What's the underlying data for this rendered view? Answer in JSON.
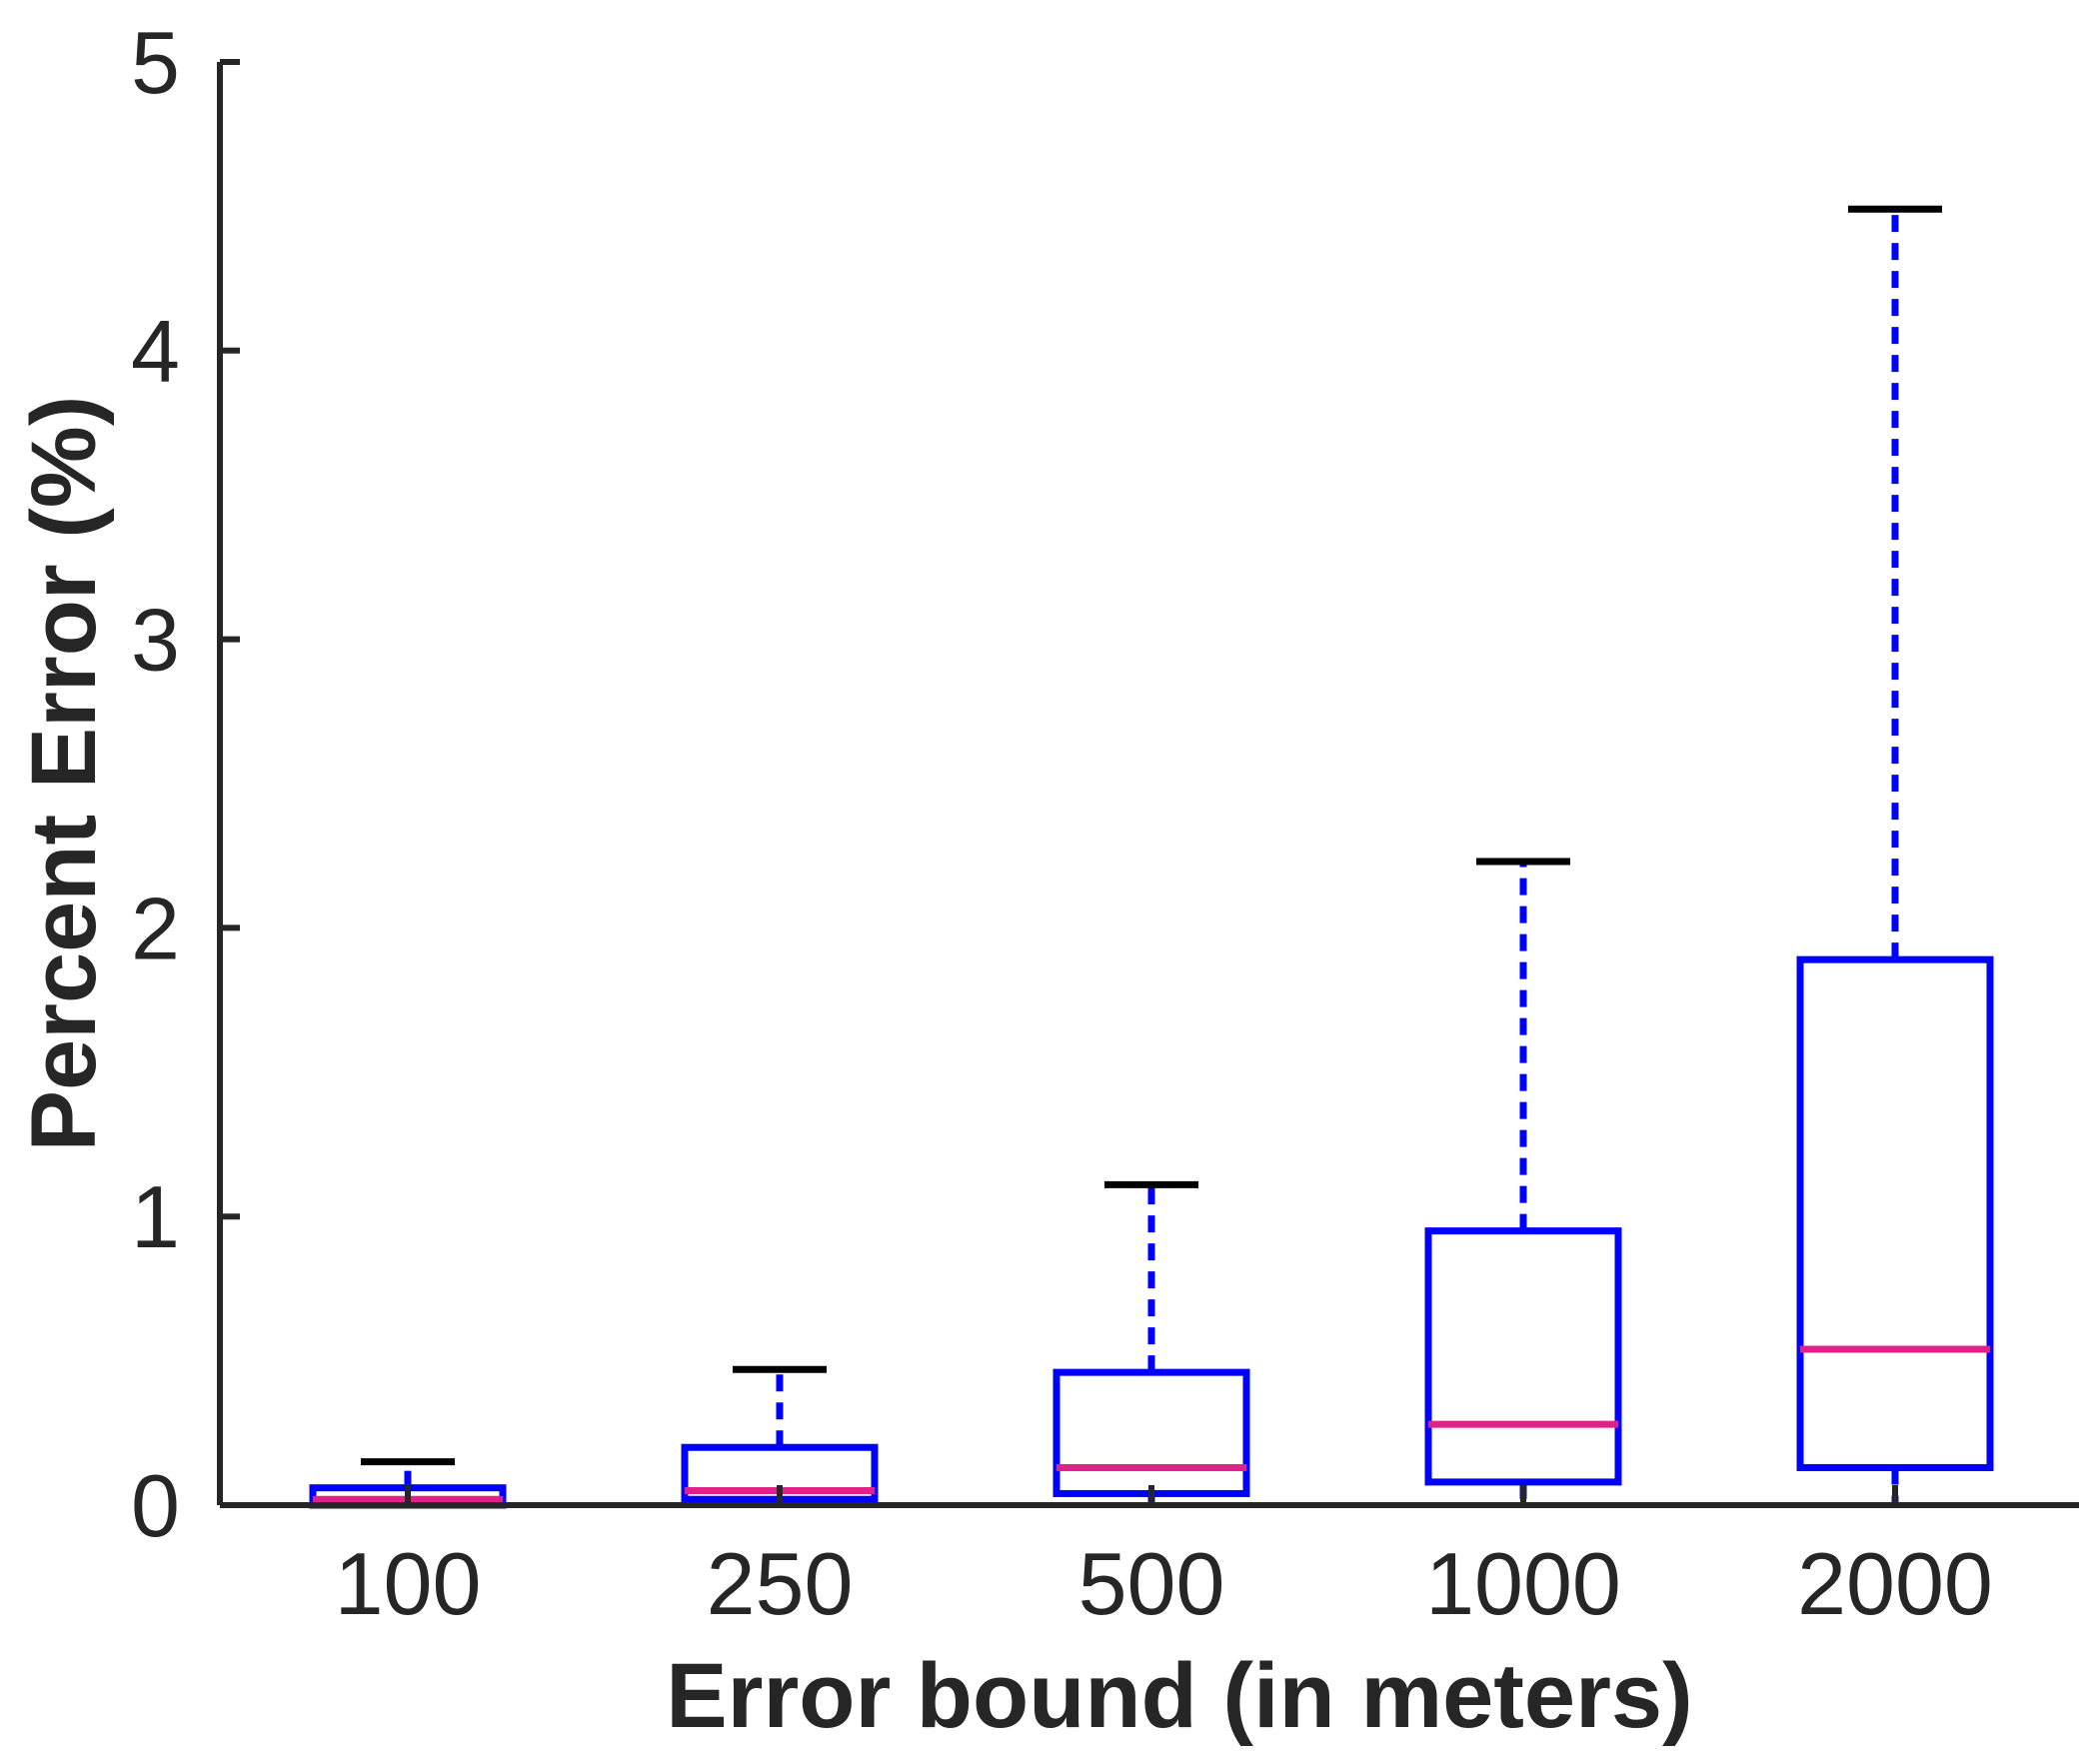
{
  "chart_data": {
    "type": "box",
    "xlabel": "Error bound (in meters)",
    "ylabel": "Percent Error (%)",
    "ylim": [
      0,
      5
    ],
    "yticks": [
      0,
      1,
      2,
      3,
      4,
      5
    ],
    "categories": [
      "100",
      "250",
      "500",
      "1000",
      "2000"
    ],
    "boxes": [
      {
        "category": "100",
        "lower_whisker": 0.0,
        "q1": 0.0,
        "median": 0.02,
        "q3": 0.06,
        "upper_whisker": 0.15
      },
      {
        "category": "250",
        "lower_whisker": 0.0,
        "q1": 0.02,
        "median": 0.05,
        "q3": 0.2,
        "upper_whisker": 0.47
      },
      {
        "category": "500",
        "lower_whisker": 0.0,
        "q1": 0.04,
        "median": 0.13,
        "q3": 0.46,
        "upper_whisker": 1.11
      },
      {
        "category": "1000",
        "lower_whisker": 0.0,
        "q1": 0.08,
        "median": 0.28,
        "q3": 0.95,
        "upper_whisker": 2.23
      },
      {
        "category": "2000",
        "lower_whisker": 0.0,
        "q1": 0.13,
        "median": 0.54,
        "q3": 1.89,
        "upper_whisker": 4.49
      }
    ],
    "colors": {
      "box": "#0000ff",
      "median": "#e0218a",
      "whisker_cap": "#000000",
      "axis": "#262626"
    },
    "grid": false
  }
}
